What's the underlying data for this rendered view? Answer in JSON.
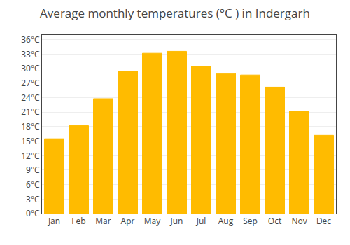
{
  "chart_data": {
    "type": "bar",
    "title": "Average monthly temperatures (°C ) in Indergarh",
    "categories": [
      "Jan",
      "Feb",
      "Mar",
      "Apr",
      "May",
      "Jun",
      "Jul",
      "Aug",
      "Sep",
      "Oct",
      "Nov",
      "Dec"
    ],
    "values": [
      15.5,
      18.2,
      23.8,
      29.5,
      33.2,
      33.6,
      30.5,
      29.0,
      28.7,
      26.2,
      21.2,
      16.2
    ],
    "color": "#FFBB00",
    "ylim": [
      0,
      37
    ],
    "yticks": [
      {
        "value": 0,
        "label": "0°C"
      },
      {
        "value": 3,
        "label": "3°C"
      },
      {
        "value": 6,
        "label": "6°C"
      },
      {
        "value": 9,
        "label": "9°C"
      },
      {
        "value": 12,
        "label": "12°C"
      },
      {
        "value": 15,
        "label": "15°C"
      },
      {
        "value": 18,
        "label": "18°C"
      },
      {
        "value": 21,
        "label": "21°C"
      },
      {
        "value": 24,
        "label": "24°C"
      },
      {
        "value": 27,
        "label": "27°C"
      },
      {
        "value": 30,
        "label": "30°C"
      },
      {
        "value": 33,
        "label": "33°C"
      },
      {
        "value": 36,
        "label": "36°C"
      }
    ],
    "grid": true
  }
}
